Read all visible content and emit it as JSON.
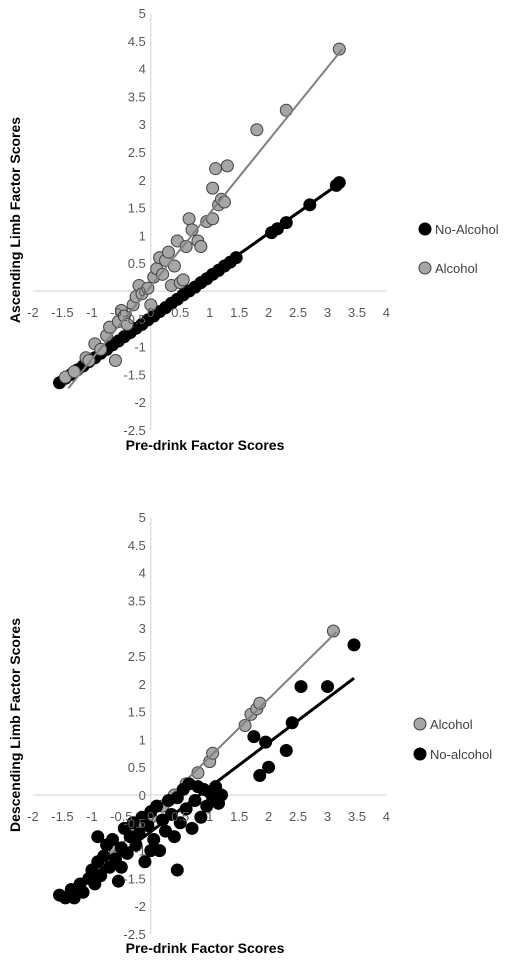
{
  "chart_data": [
    {
      "type": "scatter",
      "xlabel": "Pre-drink Factor Scores",
      "ylabel": "Ascending Limb Factor Scores",
      "xlim": [
        -2,
        4
      ],
      "ylim": [
        -2.5,
        5
      ],
      "x_ticks": [
        "-2",
        "-1.5",
        "-1",
        "-0.5",
        "0",
        "0.5",
        "1",
        "1.5",
        "2",
        "2.5",
        "3",
        "3.5",
        "4"
      ],
      "y_ticks": [
        "-2.5",
        "-2",
        "-1.5",
        "-1",
        "-0.5",
        "0",
        "0.5",
        "1",
        "1.5",
        "2",
        "2.5",
        "3",
        "3.5",
        "4",
        "4.5",
        "5"
      ],
      "legend_position": "right",
      "series": [
        {
          "name": "No-Alcohol",
          "color": "#000000",
          "trend": [
            [
              -1.6,
              -1.65
            ],
            [
              3.25,
              1.97
            ]
          ],
          "points": [
            [
              -1.55,
              -1.65
            ],
            [
              -1.45,
              -1.57
            ],
            [
              -1.35,
              -1.5
            ],
            [
              -1.25,
              -1.42
            ],
            [
              -1.15,
              -1.35
            ],
            [
              -1.05,
              -1.27
            ],
            [
              -0.95,
              -1.2
            ],
            [
              -0.85,
              -1.12
            ],
            [
              -0.75,
              -1.05
            ],
            [
              -0.65,
              -0.97
            ],
            [
              -0.55,
              -0.9
            ],
            [
              -0.45,
              -0.82
            ],
            [
              -0.35,
              -0.75
            ],
            [
              -0.25,
              -0.67
            ],
            [
              -0.15,
              -0.6
            ],
            [
              -0.05,
              -0.52
            ],
            [
              0.05,
              -0.45
            ],
            [
              0.15,
              -0.37
            ],
            [
              0.25,
              -0.3
            ],
            [
              0.35,
              -0.22
            ],
            [
              0.45,
              -0.15
            ],
            [
              0.55,
              -0.07
            ],
            [
              0.65,
              0.0
            ],
            [
              0.75,
              0.07
            ],
            [
              0.85,
              0.15
            ],
            [
              0.95,
              0.22
            ],
            [
              1.05,
              0.3
            ],
            [
              1.15,
              0.37
            ],
            [
              1.25,
              0.45
            ],
            [
              1.35,
              0.52
            ],
            [
              1.45,
              0.6
            ],
            [
              2.05,
              1.05
            ],
            [
              2.15,
              1.12
            ],
            [
              2.3,
              1.23
            ],
            [
              2.7,
              1.55
            ],
            [
              3.15,
              1.9
            ],
            [
              3.2,
              1.95
            ]
          ]
        },
        {
          "name": "Alcohol",
          "color": "#a6a6a6",
          "trend": [
            [
              -1.4,
              -1.75
            ],
            [
              3.25,
              4.35
            ]
          ],
          "points": [
            [
              -1.45,
              -1.55
            ],
            [
              -1.3,
              -1.45
            ],
            [
              -1.1,
              -1.2
            ],
            [
              -1.05,
              -1.25
            ],
            [
              -0.95,
              -0.95
            ],
            [
              -0.85,
              -1.05
            ],
            [
              -0.75,
              -0.8
            ],
            [
              -0.7,
              -0.65
            ],
            [
              -0.6,
              -1.25
            ],
            [
              -0.55,
              -0.55
            ],
            [
              -0.5,
              -0.35
            ],
            [
              -0.45,
              -0.45
            ],
            [
              -0.4,
              -0.6
            ],
            [
              -0.3,
              -0.25
            ],
            [
              -0.25,
              -0.1
            ],
            [
              -0.2,
              0.1
            ],
            [
              -0.15,
              -0.05
            ],
            [
              -0.05,
              0.05
            ],
            [
              0.0,
              -0.25
            ],
            [
              0.05,
              0.25
            ],
            [
              0.1,
              0.4
            ],
            [
              0.15,
              0.6
            ],
            [
              0.2,
              0.3
            ],
            [
              0.25,
              0.55
            ],
            [
              0.3,
              0.7
            ],
            [
              0.35,
              0.1
            ],
            [
              0.4,
              0.45
            ],
            [
              0.45,
              0.9
            ],
            [
              0.5,
              0.15
            ],
            [
              0.55,
              0.2
            ],
            [
              0.6,
              0.8
            ],
            [
              0.65,
              1.3
            ],
            [
              0.7,
              1.1
            ],
            [
              0.8,
              0.9
            ],
            [
              0.85,
              0.8
            ],
            [
              0.95,
              1.25
            ],
            [
              1.05,
              1.3
            ],
            [
              1.05,
              1.85
            ],
            [
              1.1,
              2.2
            ],
            [
              1.15,
              1.55
            ],
            [
              1.2,
              1.65
            ],
            [
              1.25,
              1.6
            ],
            [
              1.3,
              2.25
            ],
            [
              1.8,
              2.9
            ],
            [
              2.3,
              3.25
            ],
            [
              3.2,
              4.35
            ]
          ]
        }
      ]
    },
    {
      "type": "scatter",
      "xlabel": "Pre-drink Factor Scores",
      "ylabel": "Descending Limb Factor Scores",
      "xlim": [
        -2,
        4
      ],
      "ylim": [
        -2.5,
        5
      ],
      "x_ticks": [
        "-2",
        "-1.5",
        "-1",
        "-0.5",
        "0",
        "0.5",
        "1",
        "1.5",
        "2",
        "2.5",
        "3",
        "3.5",
        "4"
      ],
      "y_ticks": [
        "-2.5",
        "-2",
        "-1.5",
        "-1",
        "-0.5",
        "0",
        "0.5",
        "1",
        "1.5",
        "2",
        "2.5",
        "3",
        "3.5",
        "4",
        "4.5",
        "5"
      ],
      "legend_position": "right",
      "series": [
        {
          "name": "Alcohol",
          "color": "#a6a6a6",
          "trend": [
            [
              -1.3,
              -1.72
            ],
            [
              3.15,
              2.93
            ]
          ],
          "points": [
            [
              -0.9,
              -1.35
            ],
            [
              -0.6,
              -1.0
            ],
            [
              -0.3,
              -0.7
            ],
            [
              0.0,
              -0.4
            ],
            [
              0.2,
              -0.2
            ],
            [
              0.4,
              0.0
            ],
            [
              0.6,
              0.2
            ],
            [
              0.8,
              0.4
            ],
            [
              1.0,
              0.6
            ],
            [
              1.05,
              0.75
            ],
            [
              1.6,
              1.25
            ],
            [
              1.7,
              1.45
            ],
            [
              1.8,
              1.55
            ],
            [
              1.85,
              1.65
            ],
            [
              3.1,
              2.95
            ]
          ]
        },
        {
          "name": "No-alcohol",
          "color": "#000000",
          "trend": [
            [
              -1.3,
              -1.7
            ],
            [
              3.45,
              2.1
            ]
          ],
          "points": [
            [
              -1.55,
              -1.8
            ],
            [
              -1.45,
              -1.85
            ],
            [
              -1.35,
              -1.7
            ],
            [
              -1.3,
              -1.85
            ],
            [
              -1.2,
              -1.6
            ],
            [
              -1.15,
              -1.75
            ],
            [
              -1.05,
              -1.5
            ],
            [
              -1.0,
              -1.35
            ],
            [
              -0.95,
              -1.6
            ],
            [
              -0.9,
              -1.2
            ],
            [
              -0.9,
              -0.75
            ],
            [
              -0.85,
              -1.45
            ],
            [
              -0.8,
              -1.1
            ],
            [
              -0.75,
              -0.9
            ],
            [
              -0.7,
              -1.3
            ],
            [
              -0.65,
              -0.8
            ],
            [
              -0.6,
              -1.15
            ],
            [
              -0.55,
              -1.55
            ],
            [
              -0.5,
              -0.95
            ],
            [
              -0.45,
              -0.6
            ],
            [
              -0.4,
              -1.05
            ],
            [
              -0.35,
              -0.75
            ],
            [
              -0.3,
              -0.5
            ],
            [
              -0.25,
              -0.9
            ],
            [
              -0.2,
              -0.7
            ],
            [
              -0.15,
              -0.4
            ],
            [
              -0.1,
              -1.2
            ],
            [
              -0.05,
              -0.55
            ],
            [
              0.0,
              -0.3
            ],
            [
              0.05,
              -0.8
            ],
            [
              0.1,
              -0.2
            ],
            [
              0.15,
              -1.0
            ],
            [
              0.2,
              -0.45
            ],
            [
              0.25,
              -0.65
            ],
            [
              0.3,
              -0.1
            ],
            [
              0.35,
              -0.35
            ],
            [
              0.4,
              -0.75
            ],
            [
              0.45,
              -0.05
            ],
            [
              0.5,
              -0.5
            ],
            [
              0.55,
              0.1
            ],
            [
              0.6,
              -0.25
            ],
            [
              0.65,
              0.2
            ],
            [
              0.7,
              -0.6
            ],
            [
              0.75,
              -0.1
            ],
            [
              0.8,
              0.15
            ],
            [
              0.85,
              -0.4
            ],
            [
              0.9,
              0.1
            ],
            [
              0.95,
              -0.2
            ],
            [
              1.0,
              0.05
            ],
            [
              1.05,
              -0.05
            ],
            [
              1.1,
              0.15
            ],
            [
              1.15,
              -0.15
            ],
            [
              1.2,
              0.0
            ],
            [
              0.45,
              -1.35
            ],
            [
              0.0,
              -1.0
            ],
            [
              -0.5,
              -1.3
            ],
            [
              1.85,
              0.35
            ],
            [
              1.75,
              1.05
            ],
            [
              1.95,
              0.95
            ],
            [
              2.0,
              0.5
            ],
            [
              2.3,
              0.8
            ],
            [
              2.4,
              1.3
            ],
            [
              2.55,
              1.95
            ],
            [
              3.0,
              1.95
            ],
            [
              3.45,
              2.7
            ]
          ]
        }
      ]
    }
  ]
}
